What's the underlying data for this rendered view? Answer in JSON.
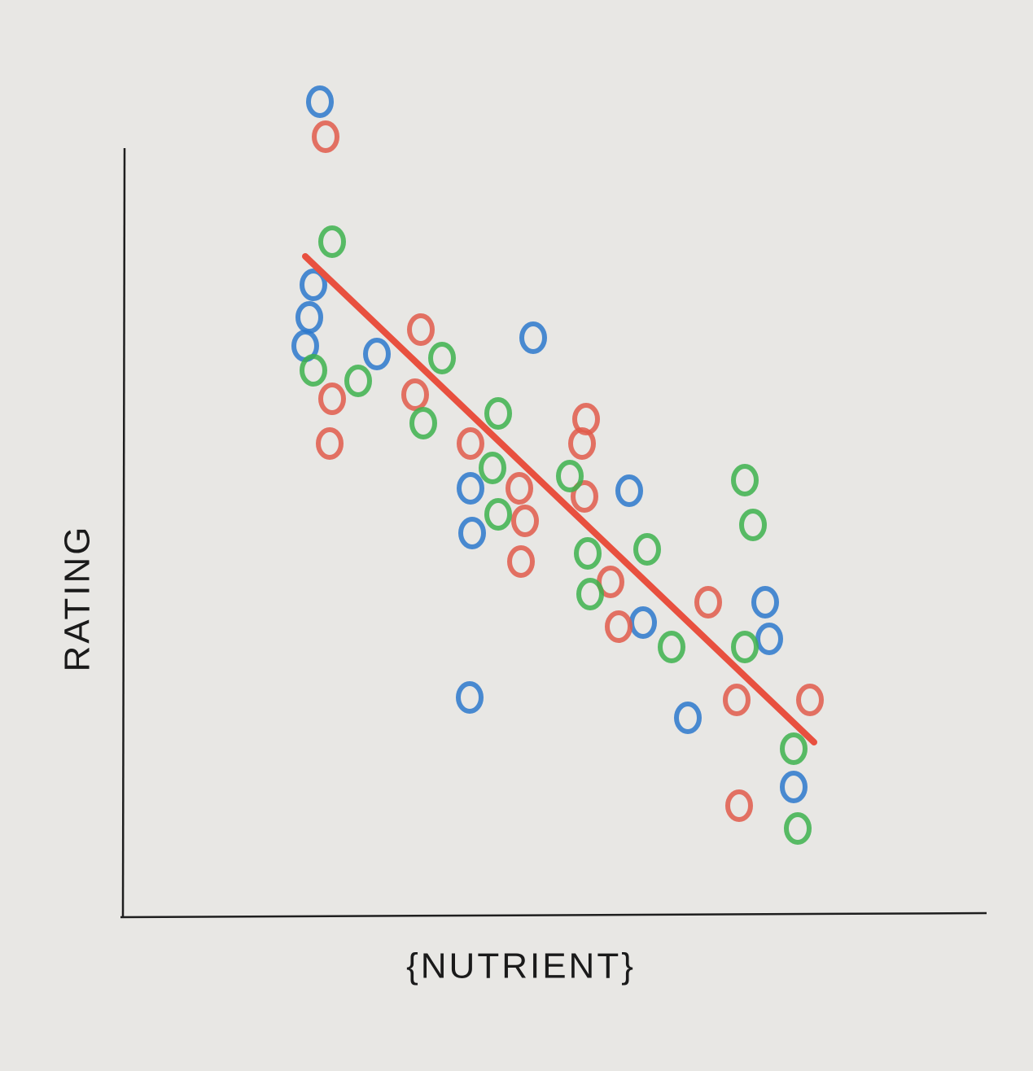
{
  "chart_data": {
    "type": "scatter",
    "x_label": "{NUTRIENT}",
    "y_label": "RATING",
    "xlim": [
      0,
      106
    ],
    "ylim": [
      0,
      105
    ],
    "series": [
      {
        "color": "#2b78cc",
        "x": [
          24.3,
          23.5,
          23,
          22.5,
          31.3,
          50.5,
          42.8,
          43,
          62.3,
          64,
          79,
          79.5,
          42.7,
          69.5,
          82.5
        ],
        "values": [
          100,
          77.5,
          73.5,
          70,
          69,
          71,
          52.5,
          47,
          52.2,
          36,
          38.5,
          34,
          26.8,
          24.3,
          15.8
        ]
      },
      {
        "color": "#e05a4b",
        "x": [
          25,
          25.8,
          25.5,
          36.7,
          36,
          42.8,
          48.8,
          49.5,
          49,
          56.5,
          57,
          56.8,
          60,
          61,
          72,
          75.5,
          84.5,
          75.8
        ],
        "values": [
          95.7,
          63.5,
          58,
          72,
          64,
          58,
          52.5,
          48.5,
          43.5,
          58,
          61,
          51.5,
          41,
          35.5,
          38.5,
          26.5,
          26.5,
          13.5
        ]
      },
      {
        "color": "#3db14e",
        "x": [
          25.8,
          23.5,
          29,
          39.3,
          37,
          46.2,
          45.5,
          46.2,
          55,
          57.2,
          57.5,
          64.5,
          67.5,
          76.5,
          77.5,
          76.5,
          82.5,
          83
        ],
        "values": [
          82.8,
          67,
          65.7,
          68.5,
          60.5,
          61.7,
          55,
          49.3,
          54,
          44.5,
          39.5,
          45,
          33,
          53.5,
          48,
          33,
          20.5,
          10.7
        ]
      }
    ],
    "trend_line": {
      "color": "#e8503f",
      "x": [
        22.5,
        85
      ],
      "values": [
        81,
        21.3
      ]
    }
  }
}
